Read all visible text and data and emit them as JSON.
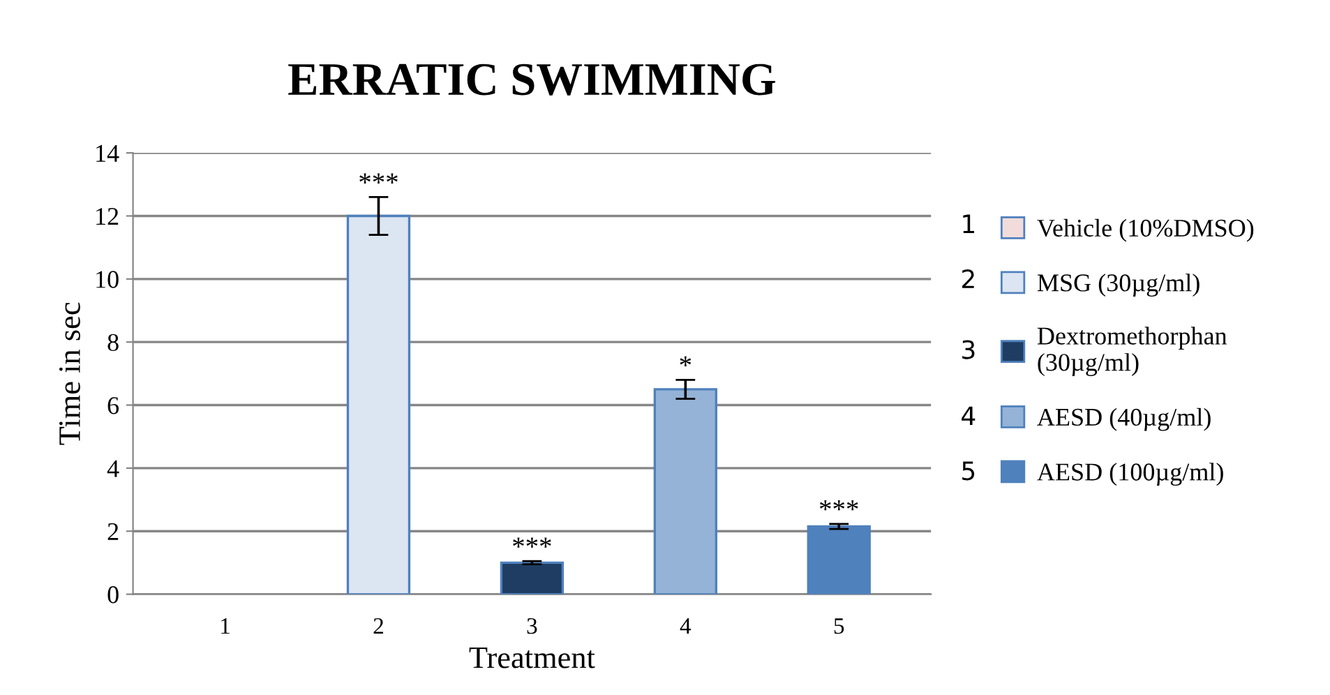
{
  "chart_data": {
    "type": "bar",
    "title": "ERRATIC SWIMMING",
    "xlabel": "Treatment",
    "ylabel": "Time in sec",
    "categories": [
      "1",
      "2",
      "3",
      "4",
      "5"
    ],
    "series": [
      {
        "name": "Vehicle (10%DMSO)",
        "color": "#f2dcdb",
        "values": [
          0,
          null,
          null,
          null,
          null
        ],
        "errors": [
          null,
          null,
          null,
          null,
          null
        ]
      },
      {
        "name": "MSG (30µg/ml)",
        "color": "#dce6f2",
        "values": [
          null,
          12,
          null,
          null,
          null
        ],
        "errors": [
          null,
          0.6,
          null,
          null,
          null
        ]
      },
      {
        "name": "Dextromethorphan (30µg/ml)",
        "color": "#1f3d63",
        "values": [
          null,
          null,
          1.0,
          null,
          null
        ],
        "errors": [
          null,
          null,
          0.05,
          null,
          null
        ]
      },
      {
        "name": "AESD (40µg/ml)",
        "color": "#95b3d7",
        "values": [
          null,
          null,
          null,
          6.5,
          null
        ],
        "errors": [
          null,
          null,
          null,
          0.3,
          null
        ]
      },
      {
        "name": "AESD (100µg/ml)",
        "color": "#4f81bd",
        "values": [
          null,
          null,
          null,
          null,
          2.15
        ],
        "errors": [
          null,
          null,
          null,
          null,
          0.08
        ]
      }
    ],
    "annotations": [
      {
        "text": "***",
        "x": "2",
        "y": 12.6
      },
      {
        "text": "***",
        "x": "3",
        "y": 1.05
      },
      {
        "text": "*",
        "x": "4",
        "y": 6.8
      },
      {
        "text": "***",
        "x": "5",
        "y": 2.23
      }
    ],
    "ylim": [
      0,
      14
    ],
    "yticks": [
      0,
      2,
      4,
      6,
      8,
      10,
      12,
      14
    ],
    "grid": "y",
    "legend": "right"
  }
}
